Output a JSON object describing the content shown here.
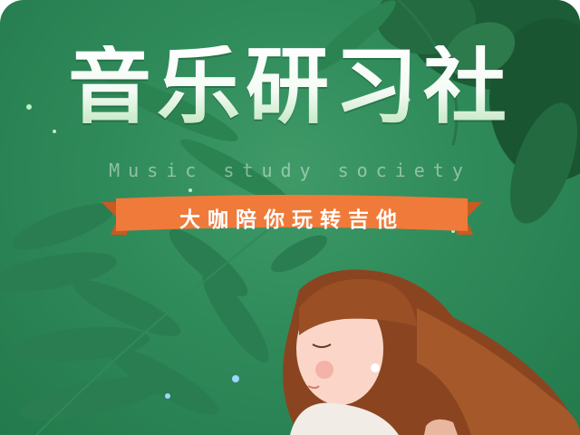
{
  "poster": {
    "title": "音乐研习社",
    "subtitle": "Music study society",
    "tagline": "大咖陪你玩转吉他"
  },
  "colors": {
    "background": "#2f8a5a",
    "ribbon": "#f07a3a",
    "title_text": "#ffffff",
    "hair": "#8a4520",
    "skin": "#fbd6c8"
  }
}
